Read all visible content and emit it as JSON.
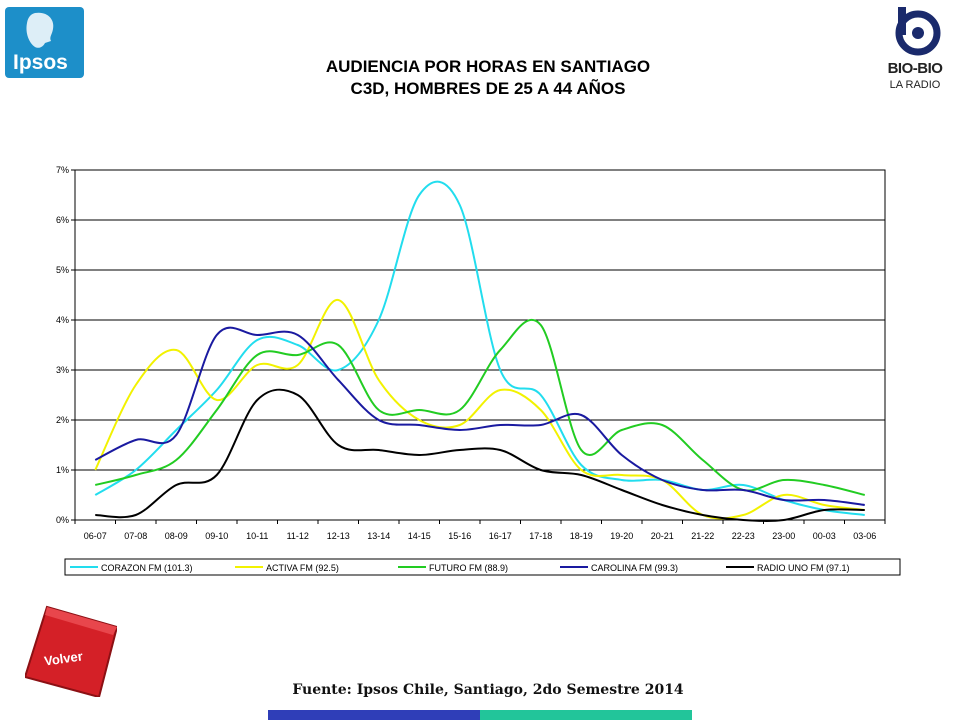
{
  "logos": {
    "left_text": "Ipsos",
    "right_text": "BIO-BIO",
    "right_subtext": "LA RADIO"
  },
  "title": {
    "line1": "AUDIENCIA POR HORAS EN SANTIAGO",
    "line2": "C3D, HOMBRES DE 25 A 44 AÑOS"
  },
  "chart_data": {
    "type": "line",
    "categories": [
      "06-07",
      "07-08",
      "08-09",
      "09-10",
      "10-11",
      "11-12",
      "12-13",
      "13-14",
      "14-15",
      "15-16",
      "16-17",
      "17-18",
      "18-19",
      "19-20",
      "20-21",
      "21-22",
      "22-23",
      "23-00",
      "00-03",
      "03-06"
    ],
    "y_ticks": [
      "0%",
      "1%",
      "2%",
      "3%",
      "4%",
      "5%",
      "6%",
      "7%"
    ],
    "ylim": [
      0,
      7
    ],
    "grid": true,
    "legend_position": "bottom",
    "series": [
      {
        "name": "CORAZON FM (101.3)",
        "color": "#22ddee",
        "values": [
          0.5,
          1.0,
          1.8,
          2.6,
          3.6,
          3.5,
          3.0,
          4.0,
          6.5,
          6.3,
          3.0,
          2.5,
          1.1,
          0.8,
          0.8,
          0.6,
          0.7,
          0.4,
          0.2,
          0.1
        ]
      },
      {
        "name": "ACTIVA  FM (92.5)",
        "color": "#f2f200",
        "values": [
          1.0,
          2.7,
          3.4,
          2.4,
          3.1,
          3.1,
          4.4,
          2.8,
          2.0,
          1.9,
          2.6,
          2.2,
          1.0,
          0.9,
          0.8,
          0.1,
          0.1,
          0.5,
          0.3,
          0.2
        ]
      },
      {
        "name": "FUTURO FM (88.9)",
        "color": "#22cc22",
        "values": [
          0.7,
          0.9,
          1.2,
          2.2,
          3.3,
          3.3,
          3.5,
          2.2,
          2.2,
          2.2,
          3.4,
          3.9,
          1.4,
          1.8,
          1.9,
          1.2,
          0.6,
          0.8,
          0.7,
          0.5
        ]
      },
      {
        "name": "CAROLINA FM (99.3)",
        "color": "#1a1aa0",
        "values": [
          1.2,
          1.6,
          1.7,
          3.7,
          3.7,
          3.7,
          2.8,
          2.0,
          1.9,
          1.8,
          1.9,
          1.9,
          2.1,
          1.3,
          0.8,
          0.6,
          0.6,
          0.4,
          0.4,
          0.3
        ]
      },
      {
        "name": "RADIO UNO FM (97.1)",
        "color": "#000000",
        "values": [
          0.1,
          0.1,
          0.7,
          0.9,
          2.4,
          2.5,
          1.5,
          1.4,
          1.3,
          1.4,
          1.4,
          1.0,
          0.9,
          0.6,
          0.3,
          0.1,
          0.0,
          0.0,
          0.2,
          0.2
        ]
      }
    ]
  },
  "nav": {
    "volver_label": "Volver"
  },
  "footer": {
    "source": "Fuente: Ipsos Chile, Santiago, 2do Semestre 2014"
  }
}
